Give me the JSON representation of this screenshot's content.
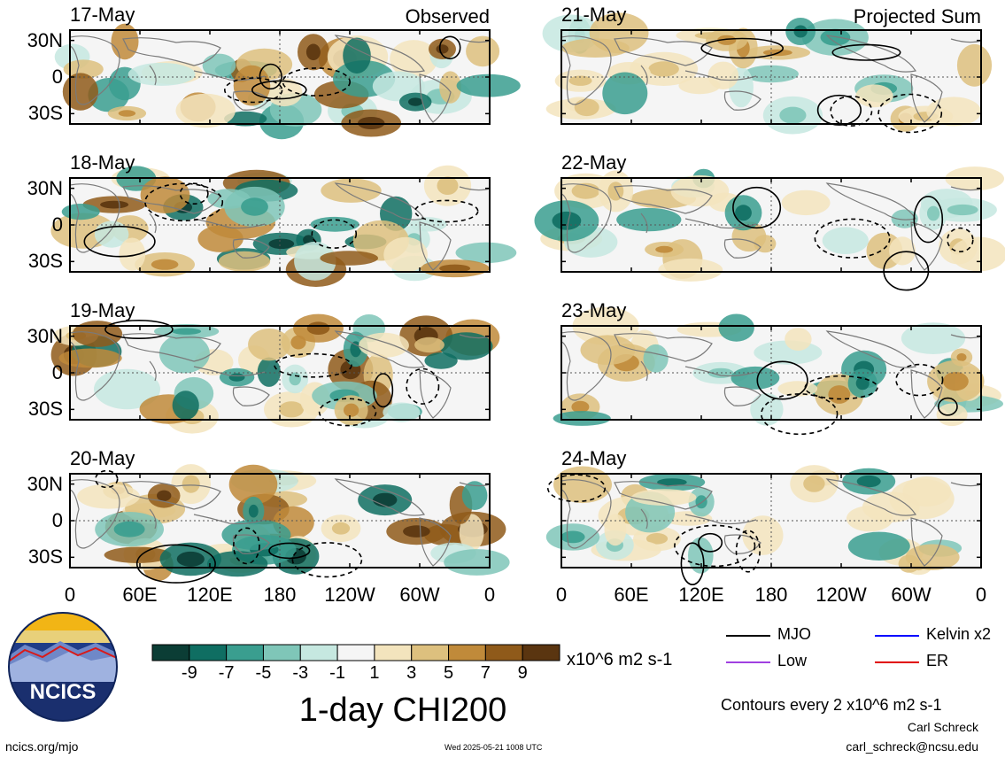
{
  "chart_data": {
    "type": "heatmap",
    "title": "1-day CHI200",
    "units": "x10^6 m2 s-1",
    "contour_note": "Contours every 2 x10^6 m2 s-1",
    "columns": [
      {
        "label": "Observed",
        "dates": [
          "17-May",
          "18-May",
          "19-May",
          "20-May"
        ]
      },
      {
        "label": "Projected Sum",
        "dates": [
          "21-May",
          "22-May",
          "23-May",
          "24-May"
        ]
      }
    ],
    "lat_ticks": [
      "30N",
      "0",
      "30S"
    ],
    "lon_ticks": [
      "0",
      "60E",
      "120E",
      "180",
      "120W",
      "60W",
      "0"
    ],
    "colorbar": {
      "ticks": [
        "-9",
        "-7",
        "-5",
        "-3",
        "-1",
        "1",
        "3",
        "5",
        "7",
        "9"
      ],
      "colors": [
        "#0b3d35",
        "#0f6e62",
        "#3a9e8f",
        "#7fc6b8",
        "#c6e8e0",
        "#f5f5f5",
        "#f3e4bd",
        "#ddc07e",
        "#c08a3a",
        "#8f5a1a",
        "#5a3510"
      ]
    },
    "legend": [
      {
        "label": "MJO",
        "color": "#000000"
      },
      {
        "label": "Kelvin x2",
        "color": "#0000ff"
      },
      {
        "label": "Low",
        "color": "#a040e0"
      },
      {
        "label": "ER",
        "color": "#e00000"
      }
    ]
  },
  "footer": {
    "logo_text": "NCICS",
    "url": "ncics.org/mjo",
    "timestamp": "Wed 2025-05-21 1008 UTC",
    "author": "Carl Schreck",
    "email": "carl_schreck@ncsu.edu"
  }
}
